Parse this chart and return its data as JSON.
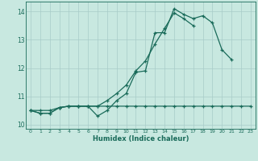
{
  "xlabel": "Humidex (Indice chaleur)",
  "bg_color": "#c8e8e0",
  "grid_color": "#a8ccc8",
  "line_color": "#1a6b5a",
  "xlim": [
    -0.5,
    23.5
  ],
  "ylim": [
    9.85,
    14.35
  ],
  "xticks": [
    0,
    1,
    2,
    3,
    4,
    5,
    6,
    7,
    8,
    9,
    10,
    11,
    12,
    13,
    14,
    15,
    16,
    17,
    18,
    19,
    20,
    21,
    22,
    23
  ],
  "yticks": [
    10,
    11,
    12,
    13,
    14
  ],
  "series1_y": [
    10.5,
    10.4,
    10.4,
    10.6,
    10.65,
    10.65,
    10.65,
    10.3,
    10.5,
    10.85,
    11.1,
    11.85,
    11.9,
    13.25,
    13.25,
    14.1,
    13.9,
    13.75,
    13.85,
    13.6,
    12.65,
    12.3,
    null,
    null
  ],
  "series2_y": [
    10.5,
    10.4,
    10.4,
    10.6,
    10.65,
    10.65,
    10.65,
    10.65,
    10.85,
    11.1,
    11.4,
    11.9,
    12.25,
    12.85,
    13.4,
    13.95,
    13.75,
    13.5,
    null,
    null,
    null,
    null,
    null,
    null
  ],
  "series3_y": [
    10.5,
    10.5,
    10.5,
    10.6,
    10.65,
    10.65,
    10.65,
    10.65,
    10.65,
    10.65,
    10.65,
    10.65,
    10.65,
    10.65,
    10.65,
    10.65,
    10.65,
    10.65,
    10.65,
    10.65,
    10.65,
    10.65,
    10.65,
    10.65
  ]
}
